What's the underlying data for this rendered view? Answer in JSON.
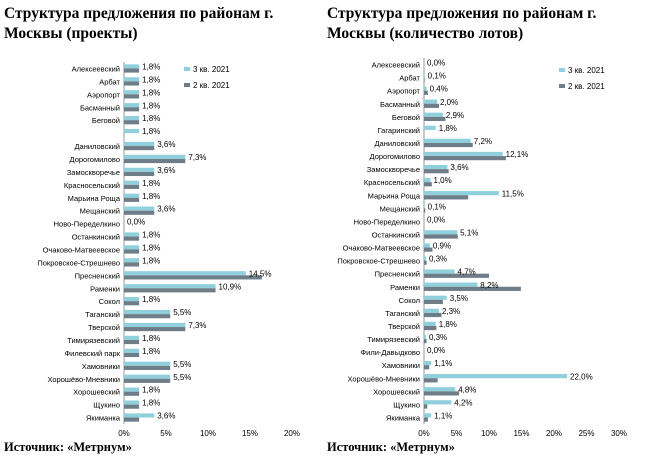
{
  "colors": {
    "q3": "#8fd0dc",
    "q2": "#6f7d88",
    "axis": "#999999"
  },
  "left": {
    "title_line1": "Структура предложения по районам г.",
    "title_line2": "Москвы (проекты)",
    "source": "Источник: «Метрнум»"
  },
  "right": {
    "title_line1": "Структура предложения по районам г.",
    "title_line2": "Москвы (количество лотов)",
    "source": "Источник: «Метрнум»"
  },
  "chart_data": [
    {
      "type": "bar",
      "orientation": "horizontal",
      "title": "Структура предложения по районам г. Москвы (проекты)",
      "xlim": [
        0,
        20
      ],
      "xticks": [
        "0%",
        "5%",
        "10%",
        "15%",
        "20%"
      ],
      "legend_position": "top-right",
      "label_series": "3 кв. 2021",
      "categories": [
        "Алексеевский",
        "Арбат",
        "Аэропорт",
        "Басманный",
        "Беговой",
        "",
        "Даниловский",
        "Дорогомилово",
        "Замоскворечье",
        "Красносельский",
        "Марьина Роща",
        "Мещанский",
        "Ново-Переделкино",
        "Останкинский",
        "Очаково-Матвеевское",
        "Покровское-Стрешнево",
        "Пресненский",
        "Раменки",
        "Сокол",
        "Таганский",
        "Тверской",
        "Тимирязевский",
        "Филевский парк",
        "Хамовники",
        "Хорошёво-Мневники",
        "Хорошевский",
        "Щукино",
        "Якиманка"
      ],
      "series": [
        {
          "name": "3 кв. 2021",
          "values": [
            1.8,
            1.8,
            1.8,
            1.8,
            1.8,
            1.8,
            3.6,
            7.3,
            3.6,
            1.8,
            1.8,
            3.6,
            0.0,
            1.8,
            1.8,
            1.8,
            14.5,
            10.9,
            1.8,
            5.5,
            7.3,
            1.8,
            1.8,
            5.5,
            5.5,
            1.8,
            1.8,
            3.6
          ]
        },
        {
          "name": "2 кв. 2021",
          "values": [
            1.8,
            1.8,
            1.8,
            1.8,
            1.8,
            0,
            3.6,
            7.3,
            3.6,
            1.8,
            1.8,
            3.6,
            0,
            1.8,
            1.8,
            1.8,
            16.4,
            10.9,
            1.8,
            5.5,
            7.3,
            1.8,
            1.8,
            5.5,
            5.5,
            1.8,
            1.8,
            1.8
          ]
        }
      ],
      "data_labels": [
        "1,8%",
        "1,8%",
        "1,8%",
        "1,8%",
        "1,8%",
        "1,8%",
        "3,6%",
        "7,3%",
        "3,6%",
        "1,8%",
        "1,8%",
        "3,6%",
        "0,0%",
        "1,8%",
        "1,8%",
        "1,8%",
        "14,5%",
        "10,9%",
        "1,8%",
        "5,5%",
        "7,3%",
        "1,8%",
        "1,8%",
        "5,5%",
        "5,5%",
        "1,8%",
        "1,8%",
        "3,6%"
      ]
    },
    {
      "type": "bar",
      "orientation": "horizontal",
      "title": "Структура предложения по районам г. Москвы (количество лотов)",
      "xlim": [
        0,
        30
      ],
      "xticks": [
        "0%",
        "5%",
        "10%",
        "15%",
        "20%",
        "25%",
        "30%"
      ],
      "legend_position": "top-right",
      "label_series": "3 кв. 2021",
      "categories": [
        "Алексеевский",
        "Арбат",
        "Аэропорт",
        "Басманный",
        "Беговой",
        "Гагаринский",
        "Даниловский",
        "Дорогомилово",
        "Замоскворечье",
        "Красносельский",
        "Марьина Роща",
        "Мещанский",
        "Ново-Переделкино",
        "Останкинский",
        "Очаково-Матвеевское",
        "Покровское-Стрешнево",
        "Пресненский",
        "Раменки",
        "Сокол",
        "Таганский",
        "Тверской",
        "Тимирязевский",
        "Фили-Давыдково",
        "Хамовники",
        "Хорошёво-Мневники",
        "Хорошевский",
        "Щукино",
        "Якиманка"
      ],
      "series": [
        {
          "name": "3 кв. 2021",
          "values": [
            0.0,
            0.1,
            0.4,
            2.0,
            2.9,
            1.8,
            7.2,
            12.1,
            3.6,
            1.0,
            11.5,
            0.1,
            0.0,
            5.1,
            0.9,
            0.3,
            4.7,
            8.2,
            3.5,
            2.3,
            1.8,
            0.3,
            0.0,
            1.1,
            22.0,
            4.8,
            4.2,
            1.1
          ]
        },
        {
          "name": "2 кв. 2021",
          "values": [
            0.0,
            0.1,
            0.6,
            2.3,
            3.3,
            0,
            7.5,
            12.6,
            3.8,
            1.2,
            6.8,
            0.2,
            0,
            5.2,
            1.3,
            0.4,
            10.0,
            14.9,
            2.9,
            2.7,
            1.9,
            0.4,
            0,
            0.8,
            2.1,
            5.4,
            0.5,
            0.6
          ]
        }
      ],
      "data_labels": [
        "0,0%",
        "0,1%",
        "0,4%",
        "2,0%",
        "2,9%",
        "1,8%",
        "7,2%",
        "12,1%",
        "3,6%",
        "1,0%",
        "11,5%",
        "0,1%",
        "0,0%",
        "5,1%",
        "0,9%",
        "0,3%",
        "4,7%",
        "8,2%",
        "3,5%",
        "2,3%",
        "1,8%",
        "0,3%",
        "0,0%",
        "1,1%",
        "22,0%",
        "4,8%",
        "4,2%",
        "1,1%"
      ]
    }
  ]
}
